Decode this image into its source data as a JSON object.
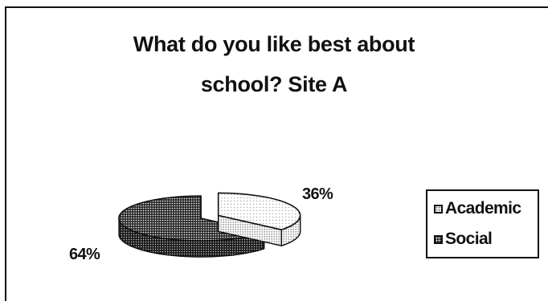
{
  "chart_data": {
    "type": "pie",
    "style": "3d-exploded",
    "title_lines": [
      "What do you like best about",
      "school? Site A"
    ],
    "slices": [
      {
        "name": "Academic",
        "value": 36,
        "label": "36%",
        "fill": "#f2f2f2"
      },
      {
        "name": "Social",
        "value": 64,
        "label": "64%",
        "fill": "#3a3a3a"
      }
    ],
    "legend": {
      "placement": "right",
      "entries": [
        "Academic",
        "Social"
      ]
    }
  }
}
